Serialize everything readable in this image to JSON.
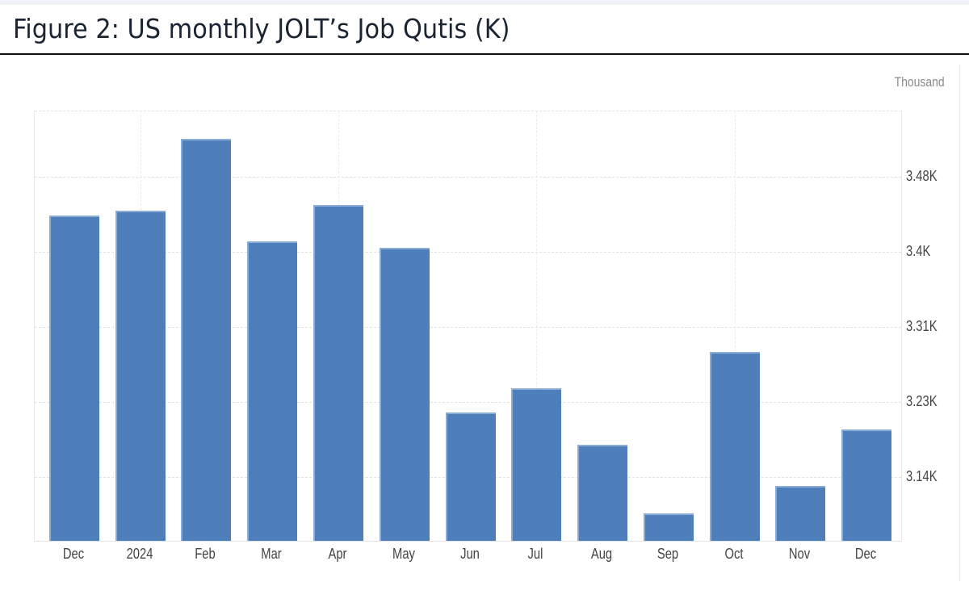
{
  "figure": {
    "title": "Figure 2: US monthly JOLT’s Job Qutis (K)",
    "unit_label": "Thousand"
  },
  "colors": {
    "bar": "#4f7fbb",
    "title": "#1a2433",
    "tick_text": "#444444"
  },
  "y_ticks": [
    "3.48K",
    "3.4K",
    "3.31K",
    "3.23K",
    "3.14K"
  ],
  "x_ticks": [
    "Dec",
    "2024",
    "Feb",
    "Mar",
    "Apr",
    "May",
    "Jun",
    "Jul",
    "Aug",
    "Sep",
    "Oct",
    "Nov",
    "Dec"
  ],
  "chart_data": {
    "type": "bar",
    "title": "Figure 2: US monthly JOLT’s Job Qutis (K)",
    "xlabel": "",
    "ylabel": "Thousand",
    "categories": [
      "Dec",
      "2024",
      "Feb",
      "Mar",
      "Apr",
      "May",
      "Jun",
      "Jul",
      "Aug",
      "Sep",
      "Oct",
      "Nov",
      "Dec"
    ],
    "values": [
      3436,
      3442,
      3523,
      3407,
      3448,
      3400,
      3213,
      3241,
      3177,
      3099,
      3282,
      3130,
      3194
    ],
    "y_tick_labels": [
      "3.14K",
      "3.23K",
      "3.31K",
      "3.4K",
      "3.48K"
    ],
    "y_tick_values": [
      3140,
      3225,
      3310,
      3395,
      3480
    ],
    "ylim": [
      3067,
      3555
    ],
    "grid": true,
    "y_axis_position": "right",
    "legend": null
  }
}
